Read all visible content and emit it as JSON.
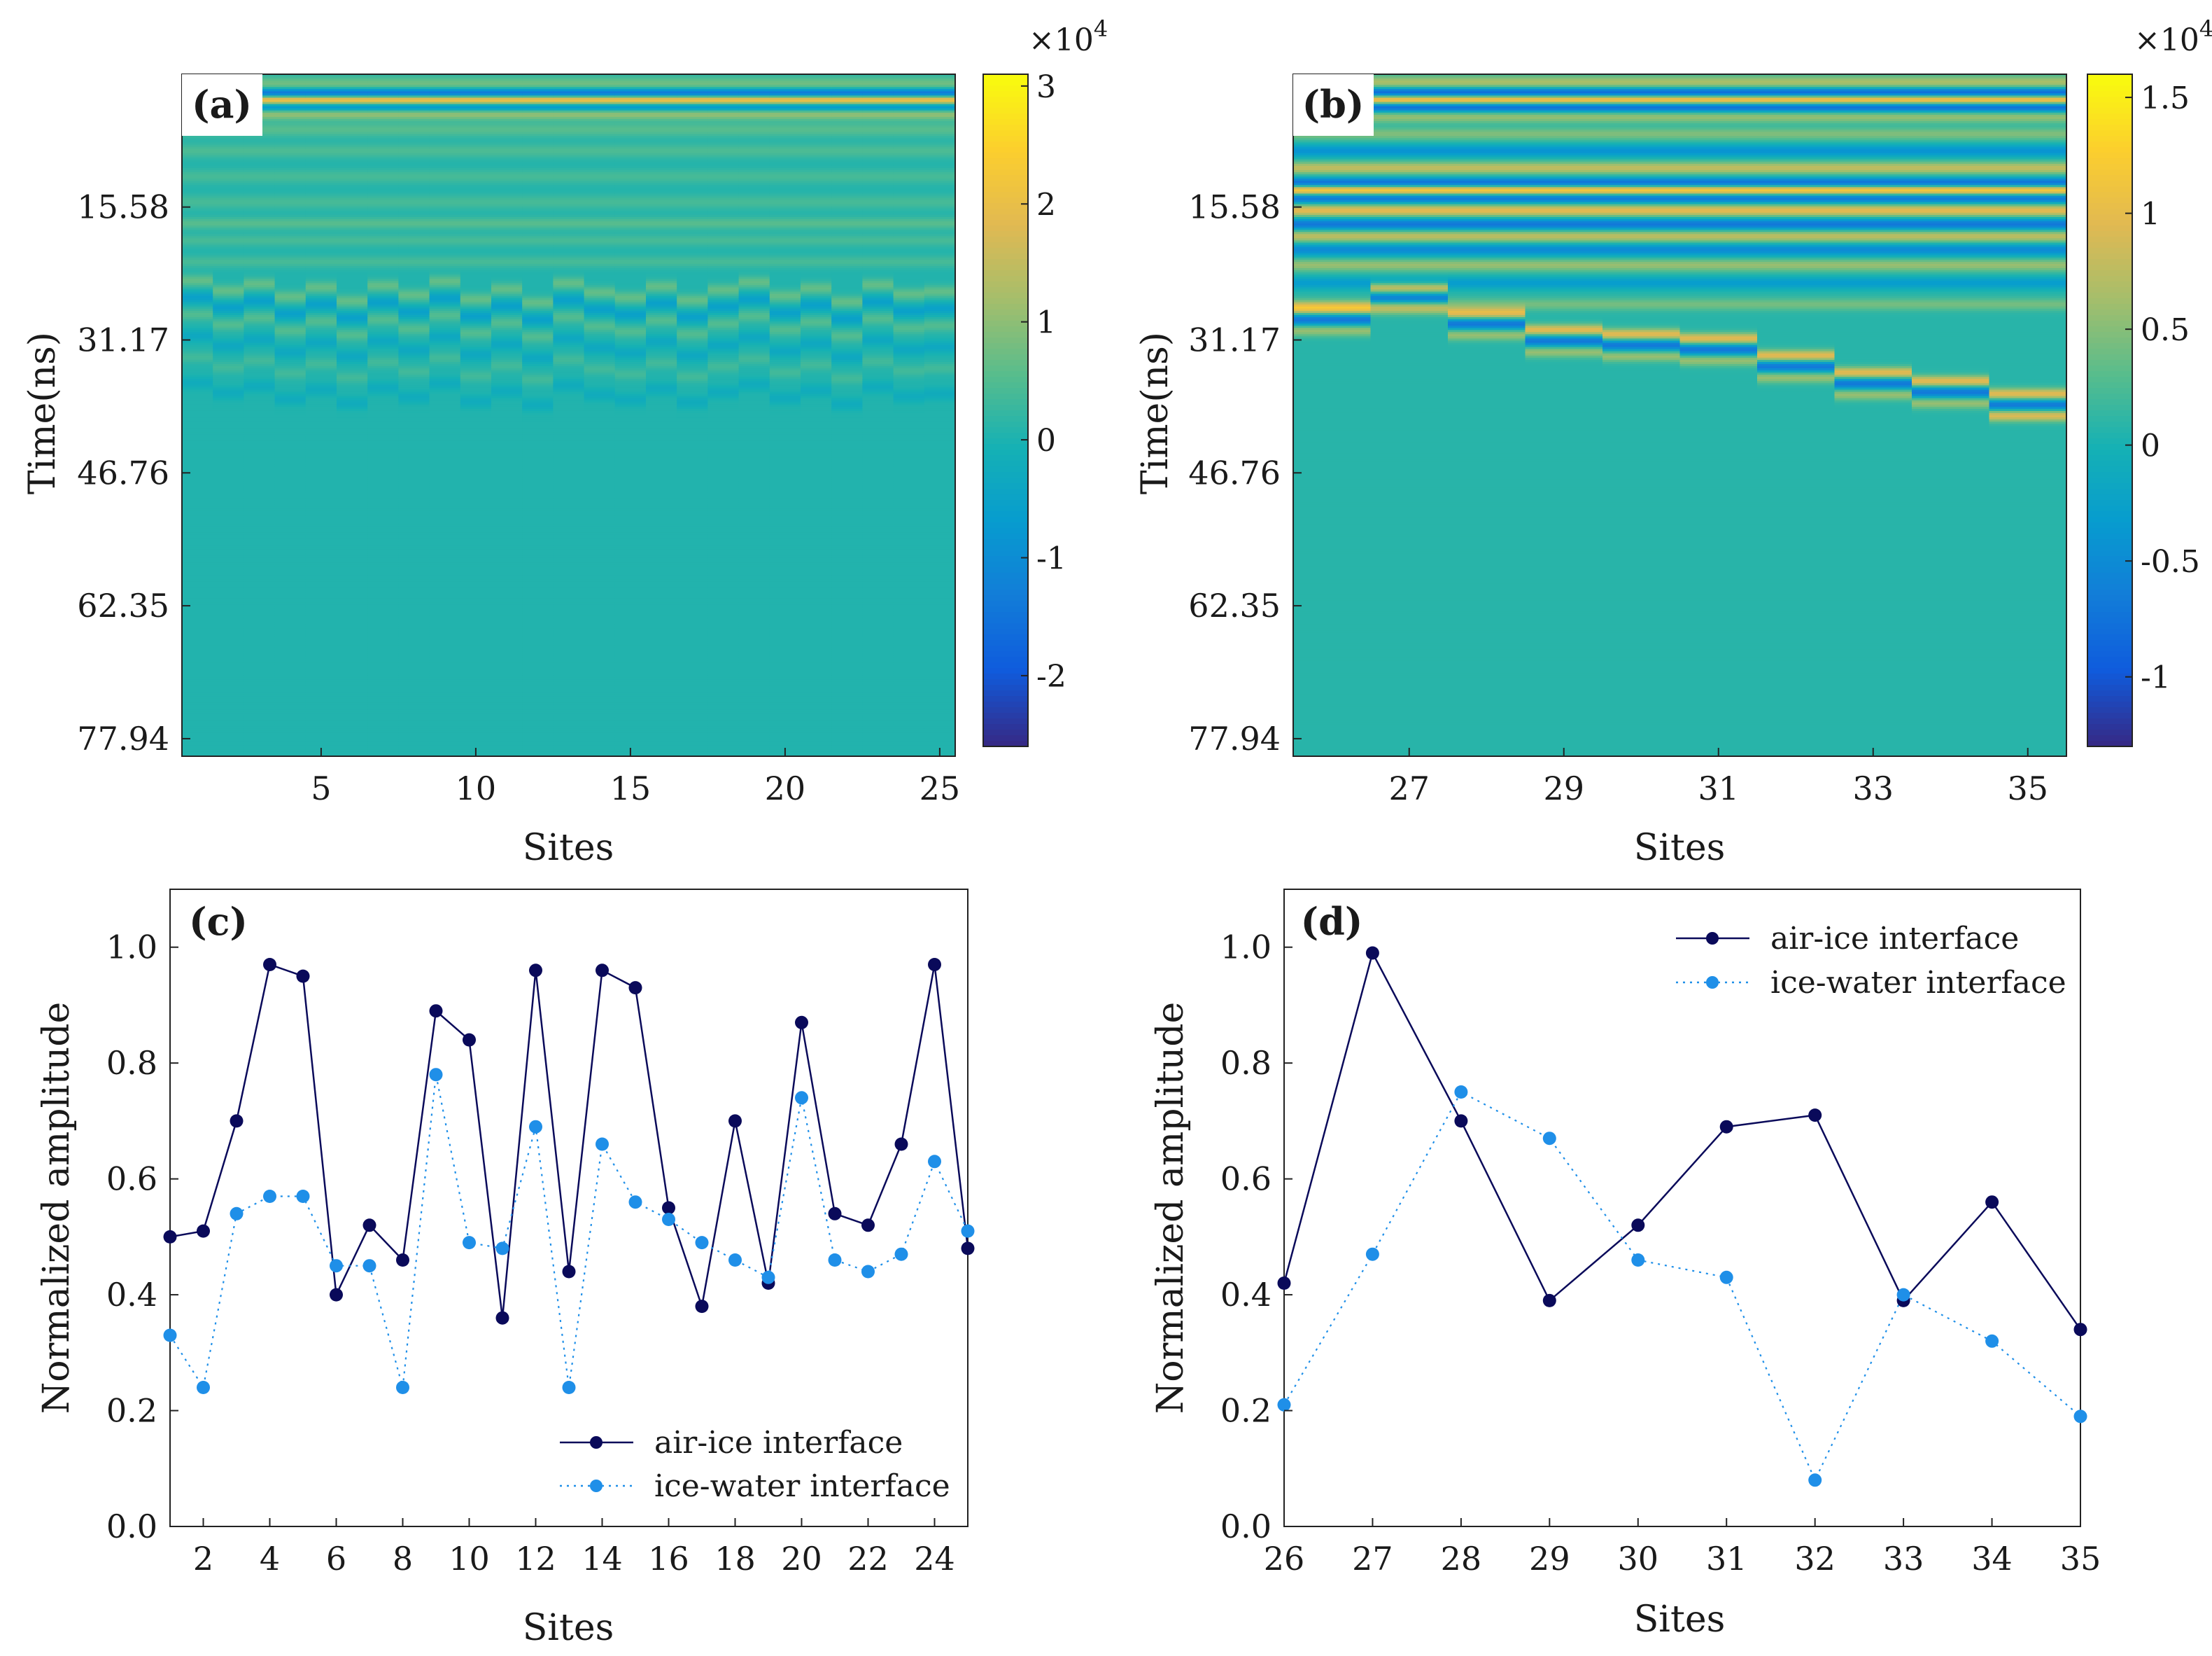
{
  "charts": {
    "a": {
      "type": "heatmap",
      "panel_label": "(a)",
      "xlabel": "Sites",
      "ylabel": "Time(ns)",
      "x_ticks": [
        "5",
        "10",
        "15",
        "20",
        "25"
      ],
      "y_ticks": [
        "15.58",
        "31.17",
        "46.76",
        "62.35",
        "77.94"
      ],
      "colorbar_exponent": "×10",
      "colorbar_exponent_power": "4",
      "colorbar_ticks": [
        "3",
        "2",
        "1",
        "0",
        "-1",
        "-2"
      ]
    },
    "b": {
      "type": "heatmap",
      "panel_label": "(b)",
      "xlabel": "Sites",
      "ylabel": "Time(ns)",
      "x_ticks": [
        "27",
        "29",
        "31",
        "33",
        "35"
      ],
      "y_ticks": [
        "15.58",
        "31.17",
        "46.76",
        "62.35",
        "77.94"
      ],
      "colorbar_exponent": "×10",
      "colorbar_exponent_power": "4",
      "colorbar_ticks": [
        "1.5",
        "1",
        "0.5",
        "0",
        "-0.5",
        "-1"
      ]
    },
    "c": {
      "panel_label": "(c)",
      "xlabel": "Sites",
      "ylabel": "Normalized amplitude",
      "x_ticks": [
        "2",
        "4",
        "6",
        "8",
        "10",
        "12",
        "14",
        "16",
        "18",
        "20",
        "22",
        "24"
      ],
      "y_ticks": [
        "0.0",
        "0.2",
        "0.4",
        "0.6",
        "0.8",
        "1.0"
      ],
      "legend": [
        "air-ice interface",
        "ice-water interface"
      ]
    },
    "d": {
      "panel_label": "(d)",
      "xlabel": "Sites",
      "ylabel": "Normalized amplitude",
      "x_ticks": [
        "26",
        "27",
        "28",
        "29",
        "30",
        "31",
        "32",
        "33",
        "34",
        "35"
      ],
      "y_ticks": [
        "0.0",
        "0.2",
        "0.4",
        "0.6",
        "0.8",
        "1.0"
      ],
      "legend": [
        "air-ice interface",
        "ice-water interface"
      ]
    }
  },
  "chart_data": [
    {
      "type": "line",
      "panel": "c",
      "xlabel": "Sites",
      "ylabel": "Normalized amplitude",
      "xlim": [
        1,
        25
      ],
      "ylim": [
        0,
        1.1
      ],
      "x": [
        1,
        2,
        3,
        4,
        5,
        6,
        7,
        8,
        9,
        10,
        11,
        12,
        13,
        14,
        15,
        16,
        17,
        18,
        19,
        20,
        21,
        22,
        23,
        24,
        25
      ],
      "series": [
        {
          "name": "air-ice interface",
          "color": "#0a0a5a",
          "values": [
            0.5,
            0.51,
            0.7,
            0.97,
            0.95,
            0.4,
            0.52,
            0.46,
            0.89,
            0.84,
            0.36,
            0.96,
            0.44,
            0.96,
            0.93,
            0.55,
            0.38,
            0.7,
            0.42,
            0.87,
            0.54,
            0.52,
            0.66,
            0.97,
            0.48
          ]
        },
        {
          "name": "ice-water interface",
          "color": "#1f8fe8",
          "values": [
            0.33,
            0.24,
            0.54,
            0.57,
            0.57,
            0.45,
            0.45,
            0.24,
            0.78,
            0.49,
            0.48,
            0.69,
            0.24,
            0.66,
            0.56,
            0.53,
            0.49,
            0.46,
            0.43,
            0.74,
            0.46,
            0.44,
            0.47,
            0.63,
            0.51
          ]
        }
      ]
    },
    {
      "type": "line",
      "panel": "d",
      "xlabel": "Sites",
      "ylabel": "Normalized amplitude",
      "xlim": [
        26,
        35
      ],
      "ylim": [
        0,
        1.1
      ],
      "x": [
        26,
        27,
        28,
        29,
        30,
        31,
        32,
        33,
        34,
        35
      ],
      "series": [
        {
          "name": "air-ice interface",
          "color": "#0a0a5a",
          "values": [
            0.42,
            0.99,
            0.7,
            0.39,
            0.52,
            0.69,
            0.71,
            0.39,
            0.56,
            0.34
          ]
        },
        {
          "name": "ice-water interface",
          "color": "#1f8fe8",
          "values": [
            0.21,
            0.47,
            0.75,
            0.67,
            0.46,
            0.43,
            0.08,
            0.4,
            0.32,
            0.19
          ]
        }
      ]
    },
    {
      "type": "heatmap",
      "panel": "a",
      "colormap": "parula",
      "xlim": [
        0.5,
        25.5
      ],
      "ylim_ns": [
        0,
        80
      ],
      "clim": [
        -2.6,
        3.1
      ],
      "sites": 25,
      "background_value": 0.05,
      "bands": [
        {
          "t": 1.3,
          "v": 0.8,
          "w": 0.7
        },
        {
          "t": 2.3,
          "v": -2.4,
          "w": 0.45
        },
        {
          "t": 3.0,
          "v": 3.0,
          "w": 0.45
        },
        {
          "t": 3.8,
          "v": -1.6,
          "w": 0.45
        },
        {
          "t": 4.6,
          "v": 1.2,
          "w": 0.5
        },
        {
          "t": 6.5,
          "v": 0.5,
          "w": 0.6
        },
        {
          "t": 9.0,
          "v": 0.4,
          "w": 0.6
        },
        {
          "t": 12.0,
          "v": 0.35,
          "w": 0.6
        },
        {
          "t": 15.0,
          "v": 0.35,
          "w": 0.6
        },
        {
          "t": 17.5,
          "v": 0.5,
          "w": 0.5
        },
        {
          "t": 19.5,
          "v": 0.35,
          "w": 0.5
        },
        {
          "t": 22.0,
          "v": 0.35,
          "w": 0.5
        }
      ],
      "site_events_base": 24,
      "site_events": [
        {
          "dt": 0,
          "v": 0.6
        },
        {
          "dt": 2.0,
          "v": -0.6
        },
        {
          "dt": 4.0,
          "v": 0.45
        },
        {
          "dt": 6.5,
          "v": -0.4
        },
        {
          "dt": 9.0,
          "v": 0.3
        },
        {
          "dt": 12.0,
          "v": -0.3
        }
      ],
      "site_offsets": [
        0.2,
        1.4,
        0.6,
        2.1,
        1.0,
        2.6,
        0.8,
        1.9,
        0.3,
        2.4,
        1.2,
        2.8,
        0.5,
        1.6,
        2.2,
        0.9,
        2.5,
        1.3,
        0.4,
        2.0,
        1.1,
        2.7,
        0.7,
        1.8,
        1.5
      ]
    },
    {
      "type": "heatmap",
      "panel": "b",
      "colormap": "parula",
      "xlim": [
        25.5,
        35.5
      ],
      "ylim_ns": [
        0,
        80
      ],
      "clim": [
        -1.3,
        1.6
      ],
      "sites": 10,
      "background_value": 0.08,
      "bands": [
        {
          "t": 1.0,
          "v": 0.6,
          "w": 0.6
        },
        {
          "t": 2.2,
          "v": -1.2,
          "w": 0.45
        },
        {
          "t": 3.0,
          "v": 1.5,
          "w": 0.45
        },
        {
          "t": 3.8,
          "v": -1.1,
          "w": 0.45
        },
        {
          "t": 5.0,
          "v": 0.5,
          "w": 0.5
        },
        {
          "t": 7.0,
          "v": 0.4,
          "w": 0.5
        },
        {
          "t": 9.0,
          "v": -0.5,
          "w": 0.5
        },
        {
          "t": 11.0,
          "v": 0.7,
          "w": 0.5
        },
        {
          "t": 12.8,
          "v": -1.0,
          "w": 0.45
        },
        {
          "t": 13.6,
          "v": 1.4,
          "w": 0.45
        },
        {
          "t": 14.5,
          "v": -0.9,
          "w": 0.45
        },
        {
          "t": 16.0,
          "v": 0.9,
          "w": 0.5
        },
        {
          "t": 17.6,
          "v": -0.8,
          "w": 0.5
        },
        {
          "t": 19.0,
          "v": 0.7,
          "w": 0.5
        },
        {
          "t": 20.6,
          "v": -0.6,
          "w": 0.5
        },
        {
          "t": 22.4,
          "v": 0.5,
          "w": 0.5
        },
        {
          "t": 24.5,
          "v": -0.4,
          "w": 0.5
        },
        {
          "t": 27.0,
          "v": 0.35,
          "w": 0.5
        }
      ],
      "site_event_times": [
        27.5,
        25.0,
        28.0,
        30.0,
        30.5,
        31.0,
        33.0,
        35.0,
        36.0,
        37.5
      ],
      "site_event_pattern": [
        {
          "dt": 0,
          "v": 0.9
        },
        {
          "dt": 1.3,
          "v": -0.8
        },
        {
          "dt": 2.6,
          "v": 0.5
        }
      ],
      "tail_event": {
        "site": 35,
        "t": 40.0,
        "v": 0.35
      }
    }
  ]
}
